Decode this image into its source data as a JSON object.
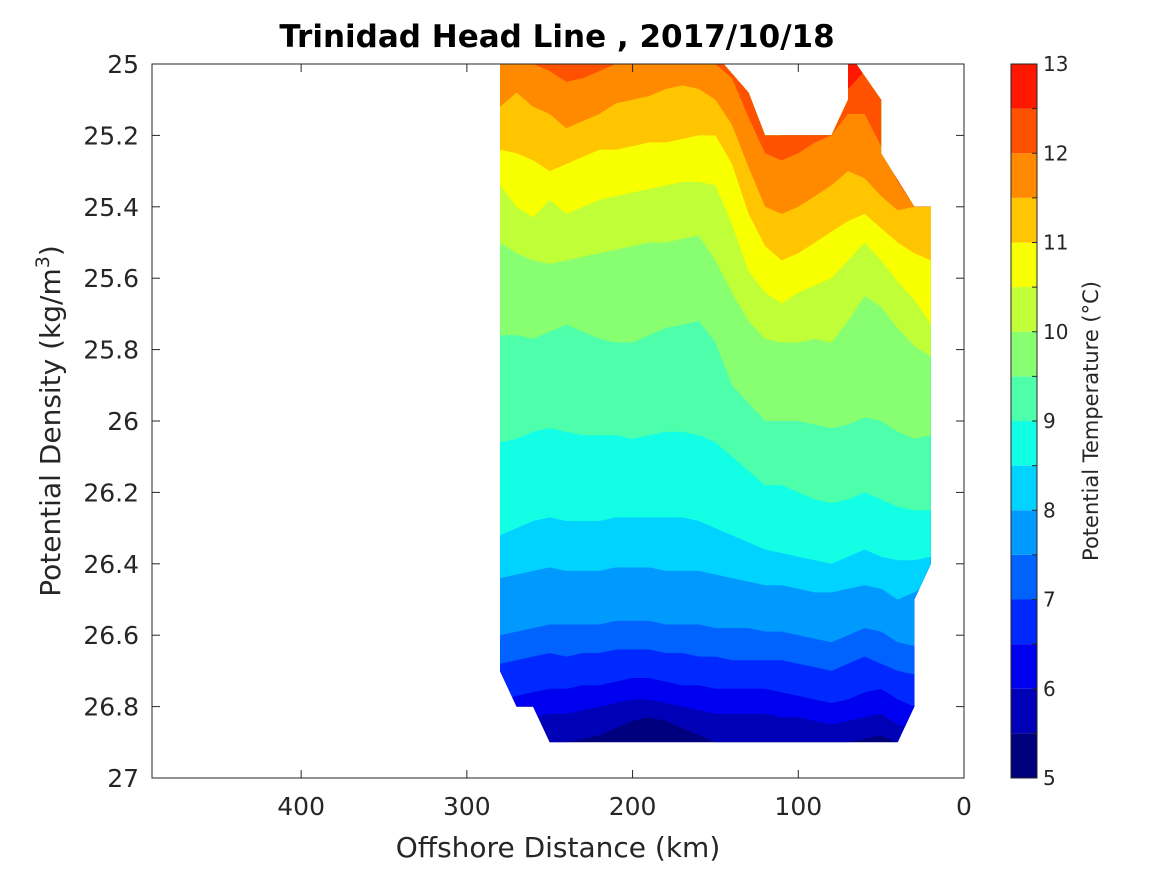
{
  "chart_data": {
    "type": "filled-contour",
    "title": "Trinidad Head Line , 2017/10/18",
    "xlabel": "Offshore Distance (km)",
    "ylabel": {
      "prefix": "Potential Density (kg/m",
      "superscript": "3",
      "suffix": ")"
    },
    "xlim": [
      490,
      0
    ],
    "ylim": [
      27,
      25
    ],
    "x_ticks": [
      400,
      300,
      200,
      100,
      0
    ],
    "x_tick_labels": [
      "400",
      "300",
      "200",
      "100",
      "0"
    ],
    "y_ticks": [
      25,
      25.2,
      25.4,
      25.6,
      25.8,
      26,
      26.2,
      26.4,
      26.6,
      26.8,
      27
    ],
    "y_tick_labels": [
      "25",
      "25.2",
      "25.4",
      "25.6",
      "25.8",
      "26",
      "26.2",
      "26.4",
      "26.6",
      "26.8",
      "27"
    ],
    "colorbar": {
      "label": "Potential Temperature (°C)",
      "range": [
        5,
        13
      ],
      "tick_values": [
        5,
        6,
        7,
        8,
        9,
        10,
        11,
        12,
        13
      ],
      "tick_labels": [
        "5",
        "6",
        "7",
        "8",
        "9",
        "10",
        "11",
        "12",
        "13"
      ],
      "levels": [
        5,
        5.5,
        6,
        6.5,
        7,
        7.5,
        8,
        8.5,
        9,
        9.5,
        10,
        10.5,
        11,
        11.5,
        12,
        12.5,
        13
      ],
      "colors": [
        "#00007f",
        "#0000b7",
        "#0000f0",
        "#0029ff",
        "#0062ff",
        "#009aff",
        "#00d3ff",
        "#12ffe5",
        "#4dffaa",
        "#87ff70",
        "#c0ff37",
        "#f8ff00",
        "#ffc500",
        "#ff8a00",
        "#ff5200",
        "#ff1700",
        "#c00000"
      ]
    },
    "x_grid": [
      280,
      270,
      260,
      250,
      240,
      230,
      220,
      210,
      200,
      190,
      180,
      170,
      160,
      150,
      140,
      130,
      120,
      110,
      100,
      90,
      80,
      70,
      60,
      50,
      40,
      30,
      20
    ],
    "isotherms": [
      {
        "temp": 5.5,
        "density": [
          26.9,
          26.9,
          26.9,
          26.9,
          26.9,
          26.89,
          26.88,
          26.86,
          26.84,
          26.83,
          26.84,
          26.86,
          26.88,
          26.9,
          26.9,
          26.9,
          26.9,
          26.9,
          26.9,
          26.9,
          26.9,
          26.9,
          26.89,
          26.88,
          26.9,
          26.9,
          26.9
        ]
      },
      {
        "temp": 6.0,
        "density": [
          26.85,
          26.84,
          26.83,
          26.82,
          26.82,
          26.81,
          26.8,
          26.79,
          26.78,
          26.78,
          26.79,
          26.8,
          26.81,
          26.82,
          26.82,
          26.82,
          26.82,
          26.83,
          26.83,
          26.84,
          26.85,
          26.84,
          26.83,
          26.82,
          26.85,
          26.86,
          26.87
        ]
      },
      {
        "temp": 6.5,
        "density": [
          26.78,
          26.77,
          26.76,
          26.75,
          26.75,
          26.74,
          26.74,
          26.73,
          26.72,
          26.72,
          26.73,
          26.74,
          26.74,
          26.75,
          26.75,
          26.75,
          26.75,
          26.76,
          26.77,
          26.78,
          26.79,
          26.78,
          26.76,
          26.75,
          26.78,
          26.8,
          26.81
        ]
      },
      {
        "temp": 7.0,
        "density": [
          26.68,
          26.67,
          26.66,
          26.65,
          26.66,
          26.65,
          26.65,
          26.64,
          26.64,
          26.64,
          26.65,
          26.65,
          26.66,
          26.66,
          26.67,
          26.67,
          26.67,
          26.67,
          26.68,
          26.69,
          26.7,
          26.68,
          26.66,
          26.68,
          26.7,
          26.71,
          26.72
        ]
      },
      {
        "temp": 7.5,
        "density": [
          26.6,
          26.59,
          26.58,
          26.57,
          26.57,
          26.57,
          26.57,
          26.56,
          26.56,
          26.56,
          26.57,
          26.57,
          26.57,
          26.58,
          26.58,
          26.58,
          26.59,
          26.59,
          26.6,
          26.61,
          26.62,
          26.6,
          26.58,
          26.59,
          26.62,
          26.63,
          26.64
        ]
      },
      {
        "temp": 8.0,
        "density": [
          26.44,
          26.43,
          26.42,
          26.41,
          26.42,
          26.42,
          26.42,
          26.41,
          26.41,
          26.41,
          26.42,
          26.42,
          26.42,
          26.43,
          26.44,
          26.45,
          26.46,
          26.46,
          26.47,
          26.48,
          26.48,
          26.47,
          26.46,
          26.47,
          26.5,
          26.48,
          26.45
        ]
      },
      {
        "temp": 8.5,
        "density": [
          26.32,
          26.3,
          26.28,
          26.27,
          26.28,
          26.28,
          26.28,
          26.27,
          26.27,
          26.27,
          26.27,
          26.27,
          26.28,
          26.3,
          26.32,
          26.34,
          26.36,
          26.37,
          26.38,
          26.39,
          26.4,
          26.38,
          26.36,
          26.38,
          26.39,
          26.39,
          26.38
        ]
      },
      {
        "temp": 9.0,
        "density": [
          26.06,
          26.05,
          26.03,
          26.02,
          26.03,
          26.04,
          26.04,
          26.04,
          26.05,
          26.04,
          26.03,
          26.03,
          26.04,
          26.06,
          26.1,
          26.14,
          26.18,
          26.18,
          26.2,
          26.22,
          26.23,
          26.22,
          26.2,
          26.22,
          26.24,
          26.25,
          26.25
        ]
      },
      {
        "temp": 9.5,
        "density": [
          25.76,
          25.76,
          25.77,
          25.75,
          25.73,
          25.75,
          25.77,
          25.78,
          25.78,
          25.76,
          25.74,
          25.73,
          25.72,
          25.78,
          25.9,
          25.95,
          26.0,
          26.0,
          26.0,
          26.01,
          26.02,
          26.01,
          25.99,
          26.0,
          26.03,
          26.05,
          26.04
        ]
      },
      {
        "temp": 10.0,
        "density": [
          25.5,
          25.53,
          25.55,
          25.56,
          25.55,
          25.54,
          25.53,
          25.52,
          25.51,
          25.5,
          25.5,
          25.49,
          25.48,
          25.55,
          25.64,
          25.72,
          25.77,
          25.78,
          25.78,
          25.77,
          25.78,
          25.72,
          25.65,
          25.68,
          25.74,
          25.79,
          25.82
        ]
      },
      {
        "temp": 10.5,
        "density": [
          25.34,
          25.4,
          25.43,
          25.38,
          25.42,
          25.4,
          25.38,
          25.37,
          25.36,
          25.35,
          25.34,
          25.33,
          25.33,
          25.34,
          25.45,
          25.58,
          25.64,
          25.67,
          25.64,
          25.62,
          25.6,
          25.55,
          25.5,
          25.55,
          25.61,
          25.66,
          25.73
        ]
      },
      {
        "temp": 11.0,
        "density": [
          25.24,
          25.25,
          25.27,
          25.3,
          25.28,
          25.26,
          25.24,
          25.24,
          25.23,
          25.22,
          25.22,
          25.21,
          25.2,
          25.2,
          25.28,
          25.42,
          25.51,
          25.55,
          25.53,
          25.5,
          25.47,
          25.44,
          25.42,
          25.46,
          25.5,
          25.53,
          25.55
        ]
      },
      {
        "temp": 11.5,
        "density": [
          25.12,
          25.08,
          25.12,
          25.14,
          25.18,
          25.16,
          25.14,
          25.11,
          25.1,
          25.09,
          25.07,
          25.06,
          25.07,
          25.1,
          25.17,
          25.29,
          25.4,
          25.42,
          25.4,
          25.37,
          25.34,
          25.3,
          25.32,
          25.37,
          25.41,
          25.4,
          25.4
        ]
      },
      {
        "temp": 12.0,
        "density": [
          25.0,
          25.0,
          25.0,
          25.02,
          25.05,
          25.04,
          25.02,
          25.0,
          25.0,
          25.0,
          25.0,
          25.0,
          25.0,
          25.0,
          25.04,
          25.15,
          25.25,
          25.27,
          25.25,
          25.22,
          25.2,
          25.14,
          25.14,
          25.23,
          25.33,
          25.4,
          25.4
        ]
      },
      {
        "temp": 12.5,
        "density": [
          25.0,
          25.0,
          25.0,
          25.0,
          25.0,
          25.0,
          25.0,
          25.0,
          25.0,
          25.0,
          25.0,
          25.0,
          25.0,
          25.0,
          25.0,
          25.05,
          25.15,
          25.2,
          25.2,
          25.2,
          25.2,
          25.07,
          25.02,
          25.1,
          25.3,
          25.4,
          25.4
        ]
      },
      {
        "temp": 13.0,
        "density": [
          25.0,
          25.0,
          25.0,
          25.0,
          25.0,
          25.0,
          25.0,
          25.0,
          25.0,
          25.0,
          25.0,
          25.0,
          25.0,
          25.0,
          25.0,
          25.0,
          25.1,
          25.2,
          25.2,
          25.2,
          25.2,
          25.0,
          25.0,
          25.1,
          25.3,
          25.4,
          25.4
        ]
      }
    ],
    "data_boundary": {
      "top": [
        [
          280,
          25.0
        ],
        [
          145,
          25.0
        ],
        [
          130,
          25.08
        ],
        [
          120,
          25.2
        ],
        [
          80,
          25.2
        ],
        [
          70,
          25.1
        ],
        [
          70,
          25.0
        ],
        [
          65,
          25.0
        ],
        [
          50,
          25.1
        ],
        [
          50,
          25.25
        ],
        [
          30,
          25.4
        ],
        [
          20,
          25.4
        ]
      ],
      "right_and_bottom": [
        [
          20,
          26.4
        ],
        [
          30,
          26.5
        ],
        [
          30,
          26.8
        ],
        [
          40,
          26.9
        ],
        [
          250,
          26.9
        ],
        [
          260,
          26.8
        ],
        [
          270,
          26.8
        ],
        [
          280,
          26.7
        ]
      ]
    }
  }
}
